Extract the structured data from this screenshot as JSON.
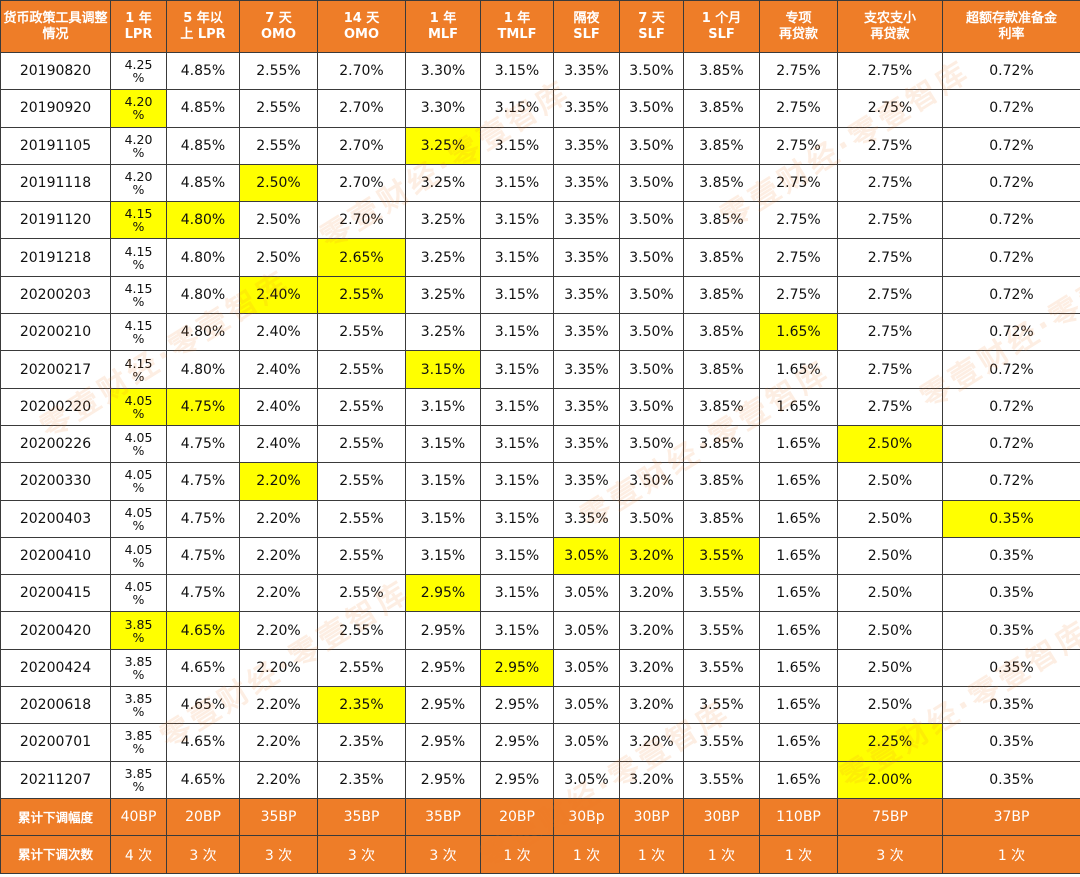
{
  "colors": {
    "header_bg": "#ee7d28",
    "highlight": "#ffff00",
    "border": "#3a3a3a"
  },
  "headers": [
    "货币政策工具调整情况",
    "1 年\nLPR",
    "5 年以\n上 LPR",
    "7 天\nOMO",
    "14 天\nOMO",
    "1 年\nMLF",
    "1 年\nTMLF",
    "隔夜\nSLF",
    "7 天\nSLF",
    "1 个月\nSLF",
    "专项\n再贷款",
    "支农支小\n再贷款",
    "超额存款准备金\n利率"
  ],
  "rows": [
    {
      "date": "20190820",
      "values": [
        "4.25\n%",
        "4.85%",
        "2.55%",
        "2.70%",
        "3.30%",
        "3.15%",
        "3.35%",
        "3.50%",
        "3.85%",
        "2.75%",
        "2.75%",
        "0.72%"
      ],
      "highlight": []
    },
    {
      "date": "20190920",
      "values": [
        "4.20\n%",
        "4.85%",
        "2.55%",
        "2.70%",
        "3.30%",
        "3.15%",
        "3.35%",
        "3.50%",
        "3.85%",
        "2.75%",
        "2.75%",
        "0.72%"
      ],
      "highlight": [
        0
      ]
    },
    {
      "date": "20191105",
      "values": [
        "4.20\n%",
        "4.85%",
        "2.55%",
        "2.70%",
        "3.25%",
        "3.15%",
        "3.35%",
        "3.50%",
        "3.85%",
        "2.75%",
        "2.75%",
        "0.72%"
      ],
      "highlight": [
        4
      ]
    },
    {
      "date": "20191118",
      "values": [
        "4.20\n%",
        "4.85%",
        "2.50%",
        "2.70%",
        "3.25%",
        "3.15%",
        "3.35%",
        "3.50%",
        "3.85%",
        "2.75%",
        "2.75%",
        "0.72%"
      ],
      "highlight": [
        2
      ]
    },
    {
      "date": "20191120",
      "values": [
        "4.15\n%",
        "4.80%",
        "2.50%",
        "2.70%",
        "3.25%",
        "3.15%",
        "3.35%",
        "3.50%",
        "3.85%",
        "2.75%",
        "2.75%",
        "0.72%"
      ],
      "highlight": [
        0,
        1
      ]
    },
    {
      "date": "20191218",
      "values": [
        "4.15\n%",
        "4.80%",
        "2.50%",
        "2.65%",
        "3.25%",
        "3.15%",
        "3.35%",
        "3.50%",
        "3.85%",
        "2.75%",
        "2.75%",
        "0.72%"
      ],
      "highlight": [
        3
      ]
    },
    {
      "date": "20200203",
      "values": [
        "4.15\n%",
        "4.80%",
        "2.40%",
        "2.55%",
        "3.25%",
        "3.15%",
        "3.35%",
        "3.50%",
        "3.85%",
        "2.75%",
        "2.75%",
        "0.72%"
      ],
      "highlight": [
        2,
        3
      ]
    },
    {
      "date": "20200210",
      "values": [
        "4.15\n%",
        "4.80%",
        "2.40%",
        "2.55%",
        "3.25%",
        "3.15%",
        "3.35%",
        "3.50%",
        "3.85%",
        "1.65%",
        "2.75%",
        "0.72%"
      ],
      "highlight": [
        9
      ]
    },
    {
      "date": "20200217",
      "values": [
        "4.15\n%",
        "4.80%",
        "2.40%",
        "2.55%",
        "3.15%",
        "3.15%",
        "3.35%",
        "3.50%",
        "3.85%",
        "1.65%",
        "2.75%",
        "0.72%"
      ],
      "highlight": [
        4
      ]
    },
    {
      "date": "20200220",
      "values": [
        "4.05\n%",
        "4.75%",
        "2.40%",
        "2.55%",
        "3.15%",
        "3.15%",
        "3.35%",
        "3.50%",
        "3.85%",
        "1.65%",
        "2.75%",
        "0.72%"
      ],
      "highlight": [
        0,
        1
      ]
    },
    {
      "date": "20200226",
      "values": [
        "4.05\n%",
        "4.75%",
        "2.40%",
        "2.55%",
        "3.15%",
        "3.15%",
        "3.35%",
        "3.50%",
        "3.85%",
        "1.65%",
        "2.50%",
        "0.72%"
      ],
      "highlight": [
        10
      ]
    },
    {
      "date": "20200330",
      "values": [
        "4.05\n%",
        "4.75%",
        "2.20%",
        "2.55%",
        "3.15%",
        "3.15%",
        "3.35%",
        "3.50%",
        "3.85%",
        "1.65%",
        "2.50%",
        "0.72%"
      ],
      "highlight": [
        2
      ]
    },
    {
      "date": "20200403",
      "values": [
        "4.05\n%",
        "4.75%",
        "2.20%",
        "2.55%",
        "3.15%",
        "3.15%",
        "3.35%",
        "3.50%",
        "3.85%",
        "1.65%",
        "2.50%",
        "0.35%"
      ],
      "highlight": [
        11
      ]
    },
    {
      "date": "20200410",
      "values": [
        "4.05\n%",
        "4.75%",
        "2.20%",
        "2.55%",
        "3.15%",
        "3.15%",
        "3.05%",
        "3.20%",
        "3.55%",
        "1.65%",
        "2.50%",
        "0.35%"
      ],
      "highlight": [
        6,
        7,
        8
      ]
    },
    {
      "date": "20200415",
      "values": [
        "4.05\n%",
        "4.75%",
        "2.20%",
        "2.55%",
        "2.95%",
        "3.15%",
        "3.05%",
        "3.20%",
        "3.55%",
        "1.65%",
        "2.50%",
        "0.35%"
      ],
      "highlight": [
        4
      ]
    },
    {
      "date": "20200420",
      "values": [
        "3.85\n%",
        "4.65%",
        "2.20%",
        "2.55%",
        "2.95%",
        "3.15%",
        "3.05%",
        "3.20%",
        "3.55%",
        "1.65%",
        "2.50%",
        "0.35%"
      ],
      "highlight": [
        0,
        1
      ]
    },
    {
      "date": "20200424",
      "values": [
        "3.85\n%",
        "4.65%",
        "2.20%",
        "2.55%",
        "2.95%",
        "2.95%",
        "3.05%",
        "3.20%",
        "3.55%",
        "1.65%",
        "2.50%",
        "0.35%"
      ],
      "highlight": [
        5
      ]
    },
    {
      "date": "20200618",
      "values": [
        "3.85\n%",
        "4.65%",
        "2.20%",
        "2.35%",
        "2.95%",
        "2.95%",
        "3.05%",
        "3.20%",
        "3.55%",
        "1.65%",
        "2.50%",
        "0.35%"
      ],
      "highlight": [
        3
      ]
    },
    {
      "date": "20200701",
      "values": [
        "3.85\n%",
        "4.65%",
        "2.20%",
        "2.35%",
        "2.95%",
        "2.95%",
        "3.05%",
        "3.20%",
        "3.55%",
        "1.65%",
        "2.25%",
        "0.35%"
      ],
      "highlight": [
        10
      ]
    },
    {
      "date": "20211207",
      "values": [
        "3.85\n%",
        "4.65%",
        "2.20%",
        "2.35%",
        "2.95%",
        "2.95%",
        "3.05%",
        "3.20%",
        "3.55%",
        "1.65%",
        "2.00%",
        "0.35%"
      ],
      "highlight": [
        10
      ]
    }
  ],
  "footer": [
    {
      "label": "累计下调幅度",
      "values": [
        "40BP",
        "20BP",
        "35BP",
        "35BP",
        "35BP",
        "20BP",
        "30Bp",
        "30BP",
        "30BP",
        "110BP",
        "75BP",
        "37BP"
      ]
    },
    {
      "label": "累计下调次数",
      "values": [
        "4 次",
        "3 次",
        "3 次",
        "3 次",
        "3 次",
        "1 次",
        "1 次",
        "1 次",
        "1 次",
        "1 次",
        "3 次",
        "1 次"
      ]
    }
  ],
  "watermark": "零壹财经·零壹智库"
}
